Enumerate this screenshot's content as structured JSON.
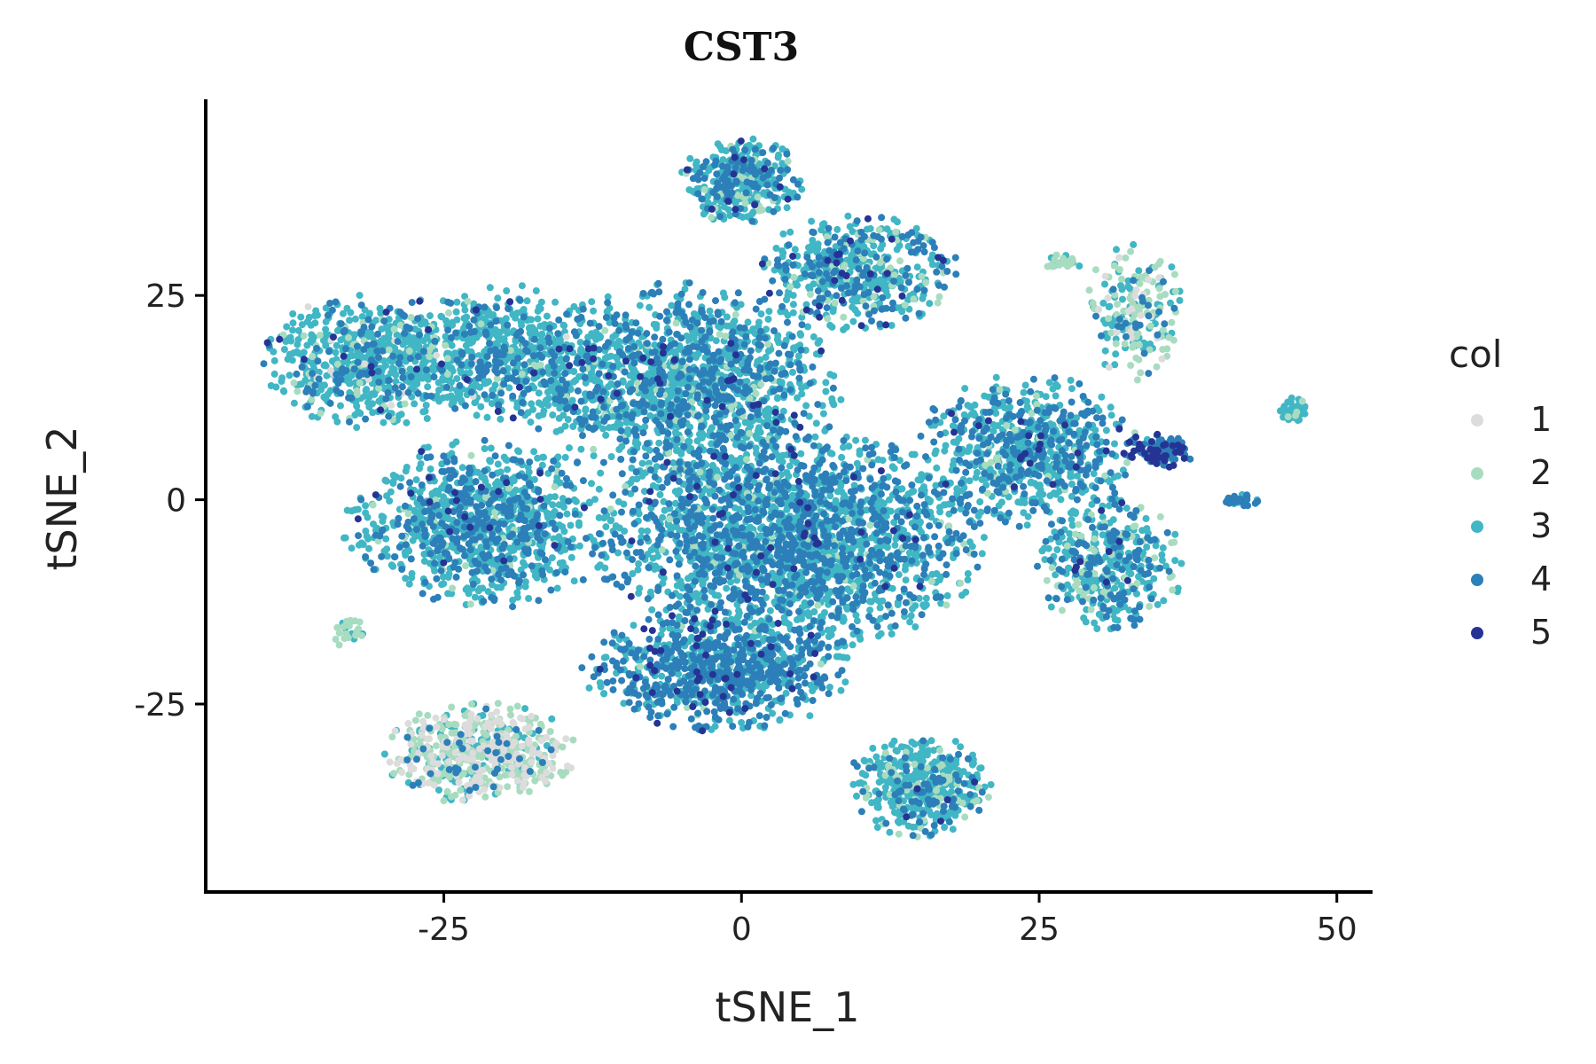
{
  "chart_data": {
    "type": "scatter",
    "title": "CST3",
    "xlabel": "tSNE_1",
    "ylabel": "tSNE_2",
    "xlim": [
      -45,
      53
    ],
    "ylim": [
      -48,
      49
    ],
    "x_ticks": [
      -25,
      0,
      25,
      50
    ],
    "y_ticks": [
      -25,
      0,
      25
    ],
    "x_tick_labels": [
      "-25",
      "0",
      "25",
      "50"
    ],
    "y_tick_labels": [
      "-25",
      "0",
      "25"
    ],
    "grid": false,
    "legend": {
      "title": "col",
      "position": "right",
      "entries": [
        {
          "label": "1",
          "color": "#dcdcdc"
        },
        {
          "label": "2",
          "color": "#a8dcc0"
        },
        {
          "label": "3",
          "color": "#41b6c4"
        },
        {
          "label": "4",
          "color": "#2c7fb8"
        },
        {
          "label": "5",
          "color": "#253494"
        }
      ]
    },
    "clusters": [
      {
        "cx": -31,
        "cy": 17,
        "rx": 9,
        "ry": 8,
        "n": 650,
        "mix": [
          0.01,
          0.06,
          0.73,
          0.18,
          0.02
        ]
      },
      {
        "cx": -20,
        "cy": 18,
        "rx": 8,
        "ry": 8,
        "n": 500,
        "mix": [
          0.01,
          0.05,
          0.7,
          0.22,
          0.02
        ]
      },
      {
        "cx": -22,
        "cy": -3,
        "rx": 11,
        "ry": 10,
        "n": 1000,
        "mix": [
          0.0,
          0.05,
          0.65,
          0.28,
          0.02
        ]
      },
      {
        "cx": -5,
        "cy": 14,
        "rx": 13,
        "ry": 12,
        "n": 1500,
        "mix": [
          0.0,
          0.05,
          0.62,
          0.31,
          0.02
        ]
      },
      {
        "cx": 0,
        "cy": 39,
        "rx": 5,
        "ry": 5,
        "n": 350,
        "mix": [
          0.01,
          0.06,
          0.62,
          0.28,
          0.03
        ]
      },
      {
        "cx": 10,
        "cy": 28,
        "rx": 8,
        "ry": 7,
        "n": 500,
        "mix": [
          0.0,
          0.08,
          0.62,
          0.27,
          0.03
        ]
      },
      {
        "cx": 4,
        "cy": -5,
        "rx": 16,
        "ry": 13,
        "n": 2200,
        "mix": [
          0.0,
          0.03,
          0.55,
          0.39,
          0.03
        ]
      },
      {
        "cx": -2,
        "cy": -21,
        "rx": 11,
        "ry": 7,
        "n": 800,
        "mix": [
          0.0,
          0.02,
          0.42,
          0.5,
          0.06
        ]
      },
      {
        "cx": 24,
        "cy": 6,
        "rx": 9,
        "ry": 9,
        "n": 700,
        "mix": [
          0.0,
          0.05,
          0.6,
          0.32,
          0.03
        ]
      },
      {
        "cx": 31,
        "cy": -8,
        "rx": 6,
        "ry": 8,
        "n": 400,
        "mix": [
          0.0,
          0.15,
          0.55,
          0.28,
          0.02
        ]
      },
      {
        "cx": 15,
        "cy": -35,
        "rx": 6,
        "ry": 6,
        "n": 450,
        "mix": [
          0.0,
          0.12,
          0.7,
          0.16,
          0.02
        ]
      },
      {
        "cx": -22,
        "cy": -31,
        "rx": 8,
        "ry": 6,
        "n": 550,
        "mix": [
          0.3,
          0.45,
          0.2,
          0.05,
          0.0
        ]
      },
      {
        "cx": 33,
        "cy": 23,
        "rx": 4,
        "ry": 8,
        "n": 200,
        "mix": [
          0.15,
          0.4,
          0.35,
          0.1,
          0.0
        ]
      },
      {
        "cx": 35,
        "cy": 6,
        "rx": 3,
        "ry": 2,
        "n": 130,
        "mix": [
          0.0,
          0.0,
          0.15,
          0.55,
          0.3
        ]
      },
      {
        "cx": 46.5,
        "cy": 11,
        "rx": 1.3,
        "ry": 1.6,
        "n": 40,
        "mix": [
          0.0,
          0.05,
          0.9,
          0.05,
          0.0
        ]
      },
      {
        "cx": 42,
        "cy": 0,
        "rx": 1.6,
        "ry": 0.8,
        "n": 35,
        "mix": [
          0.0,
          0.0,
          0.3,
          0.7,
          0.0
        ]
      },
      {
        "cx": -33,
        "cy": -16,
        "rx": 1.5,
        "ry": 2,
        "n": 25,
        "mix": [
          0.1,
          0.7,
          0.2,
          0.0,
          0.0
        ]
      },
      {
        "cx": 27,
        "cy": 29,
        "rx": 2,
        "ry": 1,
        "n": 25,
        "mix": [
          0.0,
          0.6,
          0.4,
          0.0,
          0.0
        ]
      }
    ]
  }
}
